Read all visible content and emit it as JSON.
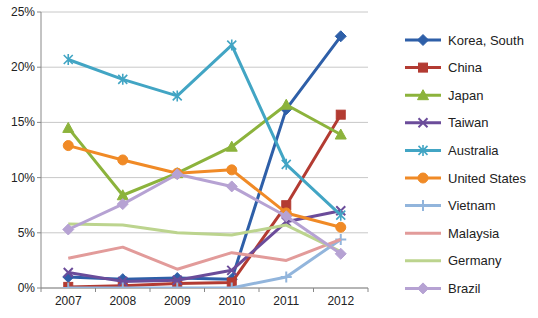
{
  "chart_data": {
    "type": "line",
    "categories": [
      "2007",
      "2008",
      "2009",
      "2010",
      "2011",
      "2012"
    ],
    "ylim": [
      0,
      25
    ],
    "yticks": [
      {
        "value": 0,
        "label": "0%"
      },
      {
        "value": 5,
        "label": "5%"
      },
      {
        "value": 10,
        "label": "10%"
      },
      {
        "value": 15,
        "label": "15%"
      },
      {
        "value": 20,
        "label": "20%"
      },
      {
        "value": 25,
        "label": "25%"
      }
    ],
    "grid": true,
    "legend": "right",
    "series": [
      {
        "name": "Korea, South",
        "color": "#2e5fa8",
        "marker": "diamond",
        "values": [
          1.0,
          0.8,
          0.9,
          0.8,
          16.2,
          22.8
        ]
      },
      {
        "name": "China",
        "color": "#b33b32",
        "marker": "square",
        "values": [
          0.1,
          0.2,
          0.4,
          0.5,
          7.5,
          15.7
        ]
      },
      {
        "name": "Japan",
        "color": "#8cb33c",
        "marker": "triangle",
        "values": [
          14.5,
          8.4,
          10.4,
          12.8,
          16.6,
          13.9
        ]
      },
      {
        "name": "Taiwan",
        "color": "#6b4c9a",
        "marker": "x",
        "values": [
          1.4,
          0.6,
          0.7,
          1.6,
          6.0,
          7.0
        ]
      },
      {
        "name": "Australia",
        "color": "#42a5c4",
        "marker": "star",
        "values": [
          20.7,
          18.9,
          17.4,
          22.0,
          11.2,
          6.6
        ]
      },
      {
        "name": "United States",
        "color": "#f08a26",
        "marker": "circle",
        "values": [
          12.9,
          11.6,
          10.4,
          10.7,
          6.8,
          5.5
        ]
      },
      {
        "name": "Vietnam",
        "color": "#92b5dc",
        "marker": "plus",
        "values": [
          0,
          0,
          0,
          0,
          1.0,
          4.4
        ]
      },
      {
        "name": "Malaysia",
        "color": "#e29b9a",
        "marker": "none",
        "values": [
          2.7,
          3.7,
          1.7,
          3.2,
          2.5,
          4.4
        ]
      },
      {
        "name": "Germany",
        "color": "#bcd48e",
        "marker": "none",
        "values": [
          5.8,
          5.7,
          5.0,
          4.8,
          5.7,
          3.3
        ]
      },
      {
        "name": "Brazil",
        "color": "#b6a2d3",
        "marker": "diamond",
        "values": [
          5.3,
          7.6,
          10.3,
          9.2,
          6.5,
          3.1
        ]
      }
    ]
  }
}
